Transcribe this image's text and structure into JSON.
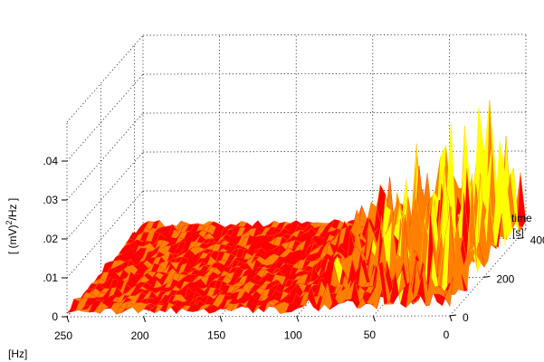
{
  "chart_data": {
    "type": "surface",
    "title": "",
    "zlabel_prefix": "[ (mV)",
    "zlabel_sup": "2",
    "zlabel_suffix": "/Hz ]",
    "xlabel_unit": "[Hz]",
    "ylabel_line1": "time",
    "ylabel_line2": "[s]",
    "x_ticks": [
      "250",
      "200",
      "150",
      "100",
      "50",
      "0"
    ],
    "y_ticks": [
      "0",
      "200",
      "400"
    ],
    "z_ticks": [
      "0",
      ".01",
      ".02",
      ".03",
      ".04"
    ],
    "xlim": [
      0,
      250
    ],
    "ylim": [
      0,
      450
    ],
    "zlim": [
      0,
      0.05
    ],
    "colormap": [
      "#ff0000",
      "#ff8000",
      "#ffff00"
    ],
    "grid": true,
    "description_values": {
      "baseline_level_high_freq": 0.002,
      "peak_power_low_freq": 0.047,
      "noisy_region_below_hz": 120
    }
  }
}
